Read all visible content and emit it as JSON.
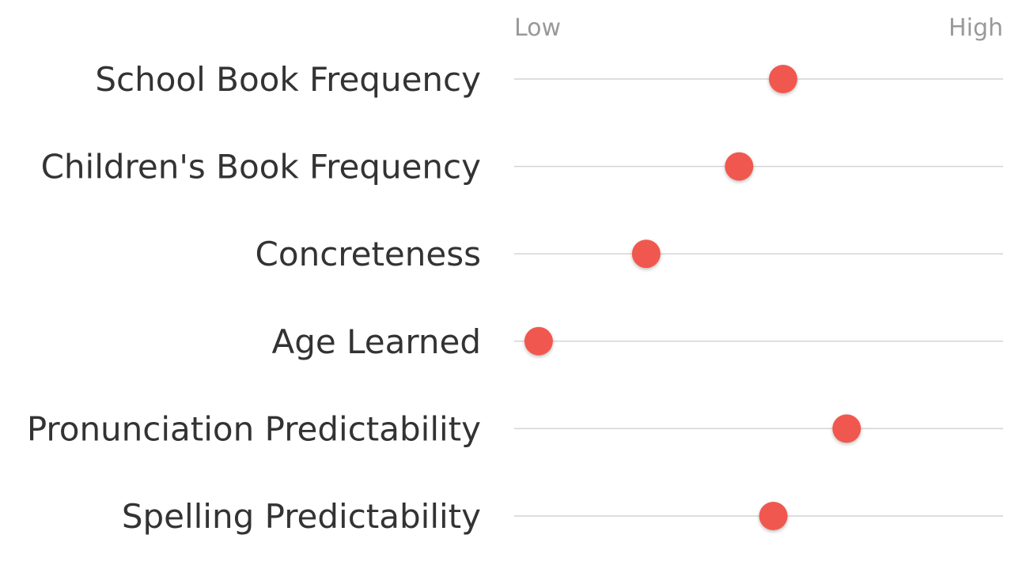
{
  "chart_data": {
    "type": "scatter",
    "scale": {
      "low_label": "Low",
      "high_label": "High",
      "range": [
        0,
        1
      ]
    },
    "categories": [
      "School Book Frequency",
      "Children's Book Frequency",
      "Concreteness",
      "Age Learned",
      "Pronunciation Predictability",
      "Spelling Predictability"
    ],
    "values": [
      0.55,
      0.46,
      0.27,
      0.05,
      0.68,
      0.53
    ],
    "grid": true,
    "legend": "none"
  },
  "colors": {
    "dot": "#f0584f",
    "track": "#d4d4d4",
    "label": "#333333",
    "scale_label": "#999999"
  }
}
